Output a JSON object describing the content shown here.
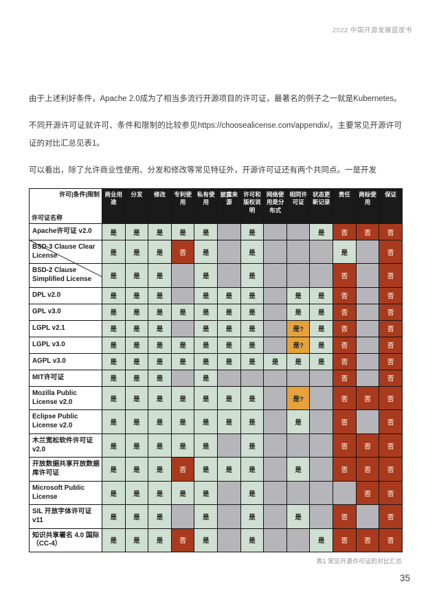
{
  "header": {
    "title": "2022 中国开源发展蓝皮书"
  },
  "paragraphs": [
    "由于上述利好条件，Apache 2.0成为了相当多流行开源项目的许可证，最著名的例子之一就是Kubernetes。",
    "不同开源许可证就许可、条件和限制的比较参见https://choosealicense.com/appendix/。主要常见开源许可证的对比汇总见表1。",
    "可以看出，除了允许商业性使用、分发和修改等常见特征外，开源许可证还有两个共同点。一是开发"
  ],
  "colors": {
    "green": "#cfdfd1",
    "gray": "#b5b5ba",
    "red": "#a93a1d",
    "red_text": "#efccba",
    "orange": "#e5a23c",
    "header_bg": "#1a1a1a"
  },
  "table": {
    "corner_top": "许可|条件|限制",
    "corner_bottom": "许可证名称",
    "caption": "表1 常见开源许可证的对比汇总",
    "value_labels": {
      "y": "是",
      "n": "否",
      "m": "是?"
    },
    "columns": [
      "商业用途",
      "分发",
      "修改",
      "专利使用",
      "私有使用",
      "披露来源",
      "许可和版权说明",
      "网络使用是分布式",
      "相同许可证",
      "状态更新记录",
      "责任",
      "商标使用",
      "保证"
    ],
    "rows": [
      {
        "name": "Apache许可证 v2.0",
        "cells": [
          "y",
          "y",
          "y",
          "y",
          "y",
          "",
          "y",
          "",
          "",
          "y",
          "n",
          "n",
          "n"
        ]
      },
      {
        "name": "BSD-3 Clause Clear License",
        "cells": [
          "y",
          "y",
          "y",
          "n",
          "y",
          "",
          "y",
          "",
          "",
          "",
          "y",
          "",
          "n"
        ]
      },
      {
        "name": "BSD-2 Clause Simplified License",
        "cells": [
          "y",
          "y",
          "y",
          "",
          "y",
          "",
          "y",
          "",
          "",
          "",
          "n",
          "",
          "n"
        ]
      },
      {
        "name": "DPL v2.0",
        "cells": [
          "y",
          "y",
          "y",
          "",
          "y",
          "y",
          "y",
          "",
          "y",
          "y",
          "n",
          "",
          "n"
        ]
      },
      {
        "name": "GPL v3.0",
        "cells": [
          "y",
          "y",
          "y",
          "y",
          "y",
          "y",
          "y",
          "",
          "y",
          "y",
          "n",
          "",
          "n"
        ]
      },
      {
        "name": "LGPL v2.1",
        "cells": [
          "y",
          "y",
          "y",
          "",
          "y",
          "y",
          "y",
          "",
          "m",
          "y",
          "n",
          "",
          "n"
        ]
      },
      {
        "name": "LGPL v3.0",
        "cells": [
          "y",
          "y",
          "y",
          "y",
          "y",
          "y",
          "y",
          "",
          "m",
          "y",
          "n",
          "",
          "n"
        ]
      },
      {
        "name": "AGPL v3.0",
        "cells": [
          "y",
          "y",
          "y",
          "y",
          "y",
          "y",
          "y",
          "y",
          "y",
          "y",
          "n",
          "",
          "n"
        ]
      },
      {
        "name": "MIT许可证",
        "cells": [
          "y",
          "y",
          "y",
          "",
          "y",
          "",
          "",
          "",
          "",
          "",
          "n",
          "",
          "n"
        ]
      },
      {
        "name": "Mozilla Public License v2.0",
        "cells": [
          "y",
          "y",
          "y",
          "y",
          "y",
          "y",
          "y",
          "",
          "m",
          "",
          "n",
          "n",
          "n"
        ]
      },
      {
        "name": "Eclipse Public License v2.0",
        "cells": [
          "y",
          "y",
          "y",
          "y",
          "y",
          "y",
          "y",
          "",
          "y",
          "",
          "n",
          "",
          "n"
        ]
      },
      {
        "name": "木兰宽松软件许可证 v2.0",
        "cells": [
          "y",
          "y",
          "y",
          "y",
          "y",
          "",
          "y",
          "",
          "",
          "",
          "n",
          "n",
          "n"
        ]
      },
      {
        "name": "开放数据共享开放数据库许可证",
        "cells": [
          "y",
          "y",
          "y",
          "n",
          "y",
          "y",
          "y",
          "",
          "y",
          "",
          "n",
          "n",
          "n"
        ]
      },
      {
        "name": "Microsoft Public License",
        "cells": [
          "y",
          "y",
          "y",
          "y",
          "y",
          "",
          "y",
          "",
          "",
          "",
          "",
          "n",
          "n"
        ]
      },
      {
        "name": "SIL 开放字体许可证 v11",
        "cells": [
          "y",
          "y",
          "y",
          "",
          "y",
          "",
          "y",
          "",
          "y",
          "",
          "n",
          "",
          "n"
        ]
      },
      {
        "name": "知识共享署名 4.0 国际（CC-4）",
        "cells": [
          "y",
          "y",
          "y",
          "n",
          "y",
          "",
          "y",
          "",
          "",
          "y",
          "n",
          "n",
          "n"
        ]
      }
    ]
  },
  "footer": {
    "page_number": "35"
  }
}
